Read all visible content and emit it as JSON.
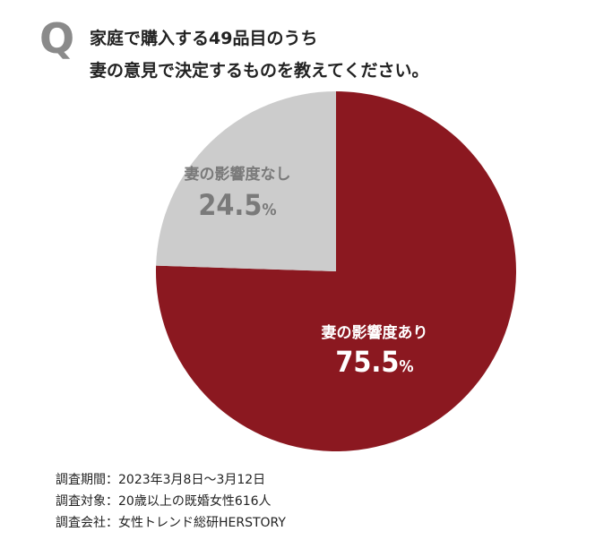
{
  "question": {
    "mark": "Q",
    "line1": "家庭で購入する49品目のうち",
    "line2": "妻の意見で決定するものを教えてください。"
  },
  "chart_data": {
    "type": "pie",
    "slices": [
      {
        "label": "妻の影響度あり",
        "value": 75.5,
        "value_label": "75.5",
        "unit": "%",
        "color": "#8b1820",
        "text_color": "#ffffff"
      },
      {
        "label": "妻の影響度なし",
        "value": 24.5,
        "value_label": "24.5",
        "unit": "%",
        "color": "#cccccc",
        "text_color": "#7a7a7a"
      }
    ],
    "start": "12 o'clock",
    "direction": "clockwise"
  },
  "notes": [
    "調査期間：2023年3月8日〜3月12日",
    "調査対象：20歳以上の既婚女性616人",
    "調査会社：女性トレンド総研HERSTORY"
  ]
}
